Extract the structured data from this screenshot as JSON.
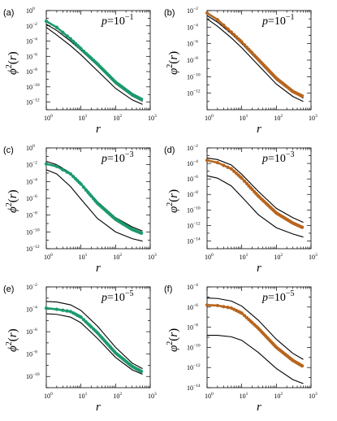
{
  "chart_data": [
    {
      "panel_id": "(a)",
      "type": "line",
      "scale": "log-log",
      "title": "p=10^{-1}",
      "p_label": {
        "var": "p",
        "base": "10",
        "exp": "−1"
      },
      "xlabel": "r",
      "ylabel": "ϕ²(r)",
      "ylabel_symbol": "ϕ",
      "xlim_exp": [
        0,
        3
      ],
      "ylim_exp": [
        -13,
        0
      ],
      "ytick_exps": [
        -12,
        -10,
        -8,
        -6,
        -4,
        -2,
        0
      ],
      "xtick_exps": [
        0,
        1,
        2,
        3
      ],
      "show_xlabel": false,
      "colors": {
        "series": "#1a9a6b"
      },
      "series": [
        {
          "style": "line-black",
          "x": [
            1,
            2,
            5,
            10,
            30,
            100,
            300,
            600
          ],
          "log10y": [
            -2.2,
            -3.2,
            -4.6,
            -5.8,
            -7.9,
            -10.2,
            -11.7,
            -12.3
          ]
        },
        {
          "style": "line-black",
          "x": [
            1,
            2,
            5,
            10,
            30,
            100,
            300,
            600
          ],
          "log10y": [
            -1.8,
            -2.6,
            -4.0,
            -5.2,
            -7.2,
            -9.6,
            -11.2,
            -11.9
          ]
        },
        {
          "style": "series",
          "x": [
            1,
            2,
            5,
            10,
            30,
            100,
            300,
            600
          ],
          "log10y": [
            -1.4,
            -2.2,
            -3.7,
            -5.0,
            -7.0,
            -9.4,
            -11.0,
            -11.7
          ]
        }
      ]
    },
    {
      "panel_id": "(b)",
      "type": "line",
      "scale": "log-log",
      "title": "p=10^{-1}",
      "p_label": {
        "var": "p",
        "base": "10",
        "exp": "−1"
      },
      "xlabel": "r",
      "ylabel": "φ²(r)",
      "ylabel_symbol": "φ",
      "xlim_exp": [
        0,
        3
      ],
      "ylim_exp": [
        -14,
        -2
      ],
      "ytick_exps": [
        -12,
        -10,
        -8,
        -6,
        -4,
        -2
      ],
      "xtick_exps": [
        0,
        1,
        2,
        3
      ],
      "show_xlabel": false,
      "colors": {
        "series": "#b8651e"
      },
      "series": [
        {
          "style": "line-black",
          "x": [
            1,
            2,
            5,
            10,
            30,
            100,
            300,
            600
          ],
          "log10y": [
            -3.0,
            -3.9,
            -5.3,
            -6.5,
            -8.6,
            -10.9,
            -12.4,
            -13.0
          ]
        },
        {
          "style": "line-black",
          "x": [
            1,
            2,
            5,
            10,
            30,
            100,
            300,
            600
          ],
          "log10y": [
            -2.6,
            -3.4,
            -4.8,
            -6.0,
            -8.1,
            -10.4,
            -11.9,
            -12.6
          ]
        },
        {
          "style": "series",
          "x": [
            1,
            2,
            5,
            10,
            30,
            100,
            300,
            600
          ],
          "log10y": [
            -2.3,
            -3.1,
            -4.6,
            -5.8,
            -7.9,
            -10.2,
            -11.8,
            -12.4
          ]
        }
      ]
    },
    {
      "panel_id": "(c)",
      "type": "line",
      "scale": "log-log",
      "title": "p=10^{-3}",
      "p_label": {
        "var": "p",
        "base": "10",
        "exp": "−3"
      },
      "xlabel": "r",
      "ylabel": "ϕ²(r)",
      "ylabel_symbol": "ϕ",
      "xlim_exp": [
        0,
        3
      ],
      "ylim_exp": [
        -12,
        0
      ],
      "ytick_exps": [
        -12,
        -10,
        -8,
        -6,
        -4,
        -2,
        0
      ],
      "xtick_exps": [
        0,
        1,
        2,
        3
      ],
      "show_xlabel": false,
      "colors": {
        "series": "#1a9a6b"
      },
      "series": [
        {
          "style": "line-black",
          "x": [
            1,
            2,
            5,
            10,
            30,
            100,
            300,
            600
          ],
          "log10y": [
            -1.6,
            -2.0,
            -3.0,
            -4.2,
            -6.4,
            -8.3,
            -9.4,
            -9.9
          ]
        },
        {
          "style": "line-black",
          "x": [
            1,
            2,
            5,
            10,
            30,
            100,
            300,
            600
          ],
          "log10y": [
            -2.6,
            -3.1,
            -4.6,
            -6.1,
            -8.4,
            -10.0,
            -10.8,
            -11.1
          ]
        },
        {
          "style": "series",
          "x": [
            1,
            2,
            5,
            10,
            30,
            100,
            300,
            600
          ],
          "log10y": [
            -1.9,
            -2.2,
            -3.1,
            -4.3,
            -6.6,
            -8.5,
            -9.7,
            -10.2
          ]
        }
      ]
    },
    {
      "panel_id": "(d)",
      "type": "line",
      "scale": "log-log",
      "title": "p=10^{-3}",
      "p_label": {
        "var": "p",
        "base": "10",
        "exp": "−3"
      },
      "xlabel": "r",
      "ylabel": "φ²(r)",
      "ylabel_symbol": "φ",
      "xlim_exp": [
        0,
        3
      ],
      "ylim_exp": [
        -15,
        -2
      ],
      "ytick_exps": [
        -14,
        -12,
        -10,
        -8,
        -6,
        -4,
        -2
      ],
      "xtick_exps": [
        0,
        1,
        2,
        3
      ],
      "show_xlabel": false,
      "colors": {
        "series": "#b8651e"
      },
      "series": [
        {
          "style": "line-black",
          "x": [
            1,
            2,
            5,
            10,
            30,
            100,
            300,
            600
          ],
          "log10y": [
            -3.3,
            -3.5,
            -4.2,
            -5.4,
            -7.6,
            -9.8,
            -11.0,
            -11.6
          ]
        },
        {
          "style": "line-black",
          "x": [
            1,
            2,
            5,
            10,
            30,
            100,
            300,
            600
          ],
          "log10y": [
            -5.6,
            -5.9,
            -6.9,
            -8.3,
            -10.6,
            -12.3,
            -13.1,
            -13.5
          ]
        },
        {
          "style": "series",
          "x": [
            1,
            2,
            5,
            10,
            30,
            100,
            300,
            600
          ],
          "log10y": [
            -3.6,
            -3.9,
            -4.7,
            -5.9,
            -8.2,
            -10.4,
            -11.7,
            -12.3
          ]
        }
      ]
    },
    {
      "panel_id": "(e)",
      "type": "line",
      "scale": "log-log",
      "title": "p=10^{-5}",
      "p_label": {
        "var": "p",
        "base": "10",
        "exp": "−5"
      },
      "xlabel": "r",
      "ylabel": "ϕ²(r)",
      "ylabel_symbol": "ϕ",
      "xlim_exp": [
        0,
        3
      ],
      "ylim_exp": [
        -11,
        -2
      ],
      "ytick_exps": [
        -10,
        -8,
        -6,
        -4,
        -2
      ],
      "xtick_exps": [
        0,
        1,
        2,
        3
      ],
      "show_xlabel": true,
      "colors": {
        "series": "#1a9a6b"
      },
      "series": [
        {
          "style": "line-black",
          "x": [
            1,
            2,
            5,
            10,
            30,
            100,
            300,
            600
          ],
          "log10y": [
            -3.3,
            -3.35,
            -3.6,
            -4.1,
            -5.5,
            -7.4,
            -8.8,
            -9.3
          ]
        },
        {
          "style": "line-black",
          "x": [
            1,
            2,
            5,
            10,
            30,
            100,
            300,
            600
          ],
          "log10y": [
            -4.4,
            -4.45,
            -4.7,
            -5.2,
            -6.6,
            -8.3,
            -9.4,
            -9.8
          ]
        },
        {
          "style": "series",
          "x": [
            1,
            2,
            5,
            10,
            30,
            100,
            300,
            600
          ],
          "log10y": [
            -3.9,
            -4.0,
            -4.2,
            -4.7,
            -6.1,
            -7.9,
            -9.1,
            -9.6
          ]
        }
      ]
    },
    {
      "panel_id": "(f)",
      "type": "line",
      "scale": "log-log",
      "title": "p=10^{-5}",
      "p_label": {
        "var": "p",
        "base": "10",
        "exp": "−5"
      },
      "xlabel": "r",
      "ylabel": "φ²(r)",
      "ylabel_symbol": "φ",
      "xlim_exp": [
        0,
        3
      ],
      "ylim_exp": [
        -14,
        -4
      ],
      "ytick_exps": [
        -14,
        -12,
        -10,
        -8,
        -6,
        -4
      ],
      "xtick_exps": [
        0,
        1,
        2,
        3
      ],
      "show_xlabel": true,
      "colors": {
        "series": "#b8651e"
      },
      "series": [
        {
          "style": "line-black",
          "x": [
            1,
            2,
            5,
            10,
            30,
            100,
            300,
            600
          ],
          "log10y": [
            -5.1,
            -5.15,
            -5.4,
            -5.9,
            -7.3,
            -9.2,
            -10.6,
            -11.2
          ]
        },
        {
          "style": "line-black",
          "x": [
            1,
            2,
            5,
            10,
            30,
            100,
            300,
            600
          ],
          "log10y": [
            -8.8,
            -8.8,
            -8.95,
            -9.3,
            -10.5,
            -12.1,
            -13.2,
            -13.6
          ]
        },
        {
          "style": "series",
          "x": [
            1,
            2,
            5,
            10,
            30,
            100,
            300,
            600
          ],
          "log10y": [
            -5.8,
            -5.85,
            -6.1,
            -6.6,
            -8.1,
            -10.0,
            -11.3,
            -11.9
          ]
        }
      ]
    }
  ]
}
